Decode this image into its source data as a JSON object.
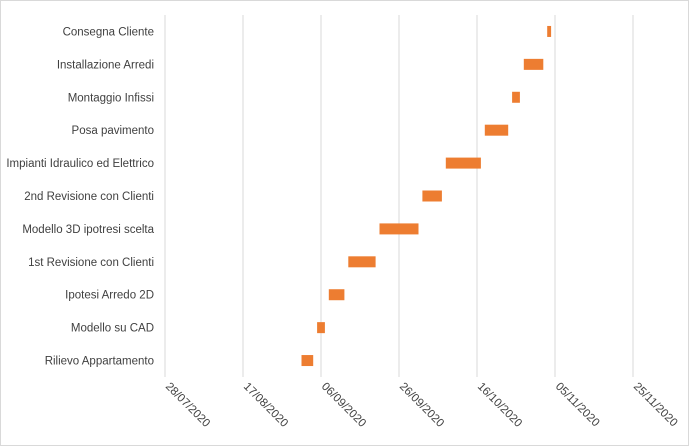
{
  "chart_data": {
    "type": "gantt",
    "title": "",
    "xlabel": "",
    "ylabel": "",
    "x_axis": {
      "type": "date",
      "min": "2020-07-28",
      "max": "2020-11-25",
      "tick_dates": [
        "2020-07-28",
        "2020-08-17",
        "2020-09-06",
        "2020-09-26",
        "2020-10-16",
        "2020-11-05",
        "2020-11-25"
      ],
      "tick_labels": [
        "28/07/2020",
        "17/08/2020",
        "06/09/2020",
        "26/09/2020",
        "16/10/2020",
        "05/11/2020",
        "25/11/2020"
      ],
      "label_rotation": "45deg",
      "gridlines": true
    },
    "bar_color": "#ED7D31",
    "tasks": [
      {
        "label": "Rilievo Appartamento",
        "start": "2020-09-01",
        "end": "2020-09-04"
      },
      {
        "label": "Modello su CAD",
        "start": "2020-09-05",
        "end": "2020-09-07"
      },
      {
        "label": "Ipotesi Arredo 2D",
        "start": "2020-09-08",
        "end": "2020-09-12"
      },
      {
        "label": "1st Revisione con Clienti",
        "start": "2020-09-13",
        "end": "2020-09-20"
      },
      {
        "label": "Modello 3D ipotresi scelta",
        "start": "2020-09-21",
        "end": "2020-10-01"
      },
      {
        "label": "2nd Revisione con Clienti",
        "start": "2020-10-02",
        "end": "2020-10-07"
      },
      {
        "label": "Impianti Idraulico ed Elettrico",
        "start": "2020-10-08",
        "end": "2020-10-17"
      },
      {
        "label": "Posa pavimento",
        "start": "2020-10-18",
        "end": "2020-10-24"
      },
      {
        "label": "Montaggio Infissi",
        "start": "2020-10-25",
        "end": "2020-10-27"
      },
      {
        "label": "Installazione Arredi",
        "start": "2020-10-28",
        "end": "2020-11-02"
      },
      {
        "label": "Consegna Cliente",
        "start": "2020-11-03",
        "end": "2020-11-04"
      }
    ]
  }
}
